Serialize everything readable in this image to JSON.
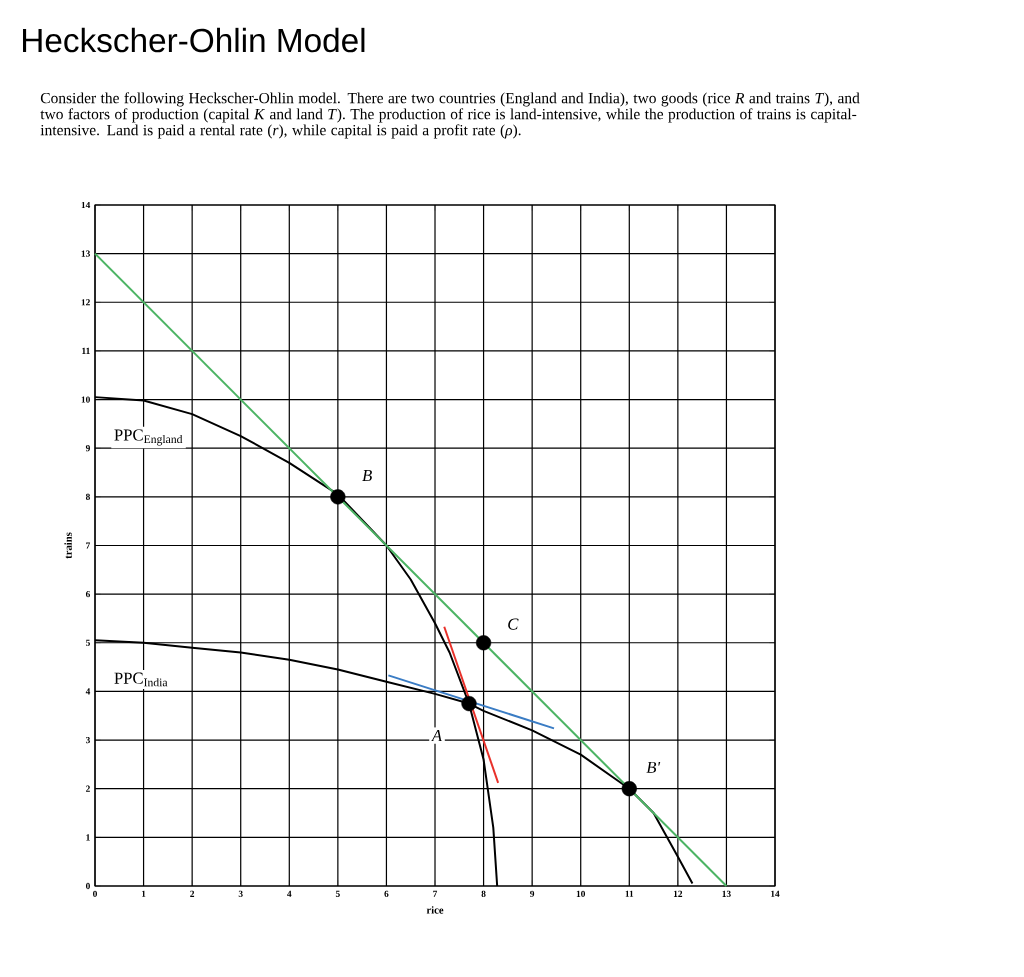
{
  "chart_data": {
    "type": "line",
    "title": "Heckscher-Ohlin Model",
    "subtitle": "Consider the following Heckscher-Ohlin model.  There are two countries (England and India), two goods (rice *R* and trains *T*), and two factors of production (capital *K* and land *T*).  The production of rice is land-intensive, while the production of trains is capital-intensive.  Land is paid a rental rate (*r*), while capital is paid a profit rate (*ρ*).",
    "xlabel": "rice",
    "ylabel": "trains",
    "xlim": [
      0,
      14
    ],
    "ylim": [
      0,
      14
    ],
    "xticks": [
      0,
      1,
      2,
      3,
      4,
      5,
      6,
      7,
      8,
      9,
      10,
      11,
      12,
      13,
      14
    ],
    "yticks": [
      0,
      1,
      2,
      3,
      4,
      5,
      6,
      7,
      8,
      9,
      10,
      11,
      12,
      13,
      14
    ],
    "grid": true,
    "marker": "none",
    "line_style": "solid",
    "series": [
      {
        "name": "PPC$_{England}$",
        "color": "#000000",
        "x": [
          0,
          1,
          2,
          3,
          4,
          5,
          6,
          6.5,
          7,
          7.3,
          7.7,
          8,
          8.2,
          8.28
        ],
        "values": [
          10.05,
          9.98,
          9.7,
          9.25,
          8.7,
          8.05,
          7.0,
          6.3,
          5.4,
          4.8,
          3.75,
          2.6,
          1.2,
          0
        ]
      },
      {
        "name": "PPC$_{India}$",
        "color": "#000000",
        "x": [
          0,
          1,
          2,
          3,
          4,
          5,
          6,
          7,
          7.7,
          8,
          9,
          10,
          11,
          11.5,
          12,
          12.3
        ],
        "values": [
          5.05,
          5.0,
          4.9,
          4.8,
          4.65,
          4.45,
          4.2,
          3.95,
          3.75,
          3.6,
          3.2,
          2.7,
          2.0,
          1.5,
          0.6,
          0.05
        ]
      },
      {
        "color": "#4cb464",
        "x": [
          0,
          13
        ],
        "values": [
          13,
          0
        ]
      },
      {
        "color": "#e8312a",
        "x": [
          7.19,
          8.3
        ],
        "values": [
          5.33,
          2.12
        ]
      },
      {
        "color": "#3a7cc4",
        "x": [
          6.04,
          9.45
        ],
        "values": [
          4.33,
          3.24
        ]
      },
      {
        "type": "scatter",
        "color": "#000000",
        "marker": "circle",
        "x": [
          5,
          8,
          7.7,
          11
        ],
        "values": [
          8,
          5,
          3.75,
          2
        ]
      }
    ],
    "annotations": [
      {
        "text": "*B*",
        "x": 5,
        "y": 8
      },
      {
        "text": "*C*",
        "x": 8,
        "y": 5
      },
      {
        "text": "*A*",
        "x": 7.7,
        "y": 3.75
      },
      {
        "text": "*B'*",
        "x": 11,
        "y": 2
      }
    ]
  }
}
